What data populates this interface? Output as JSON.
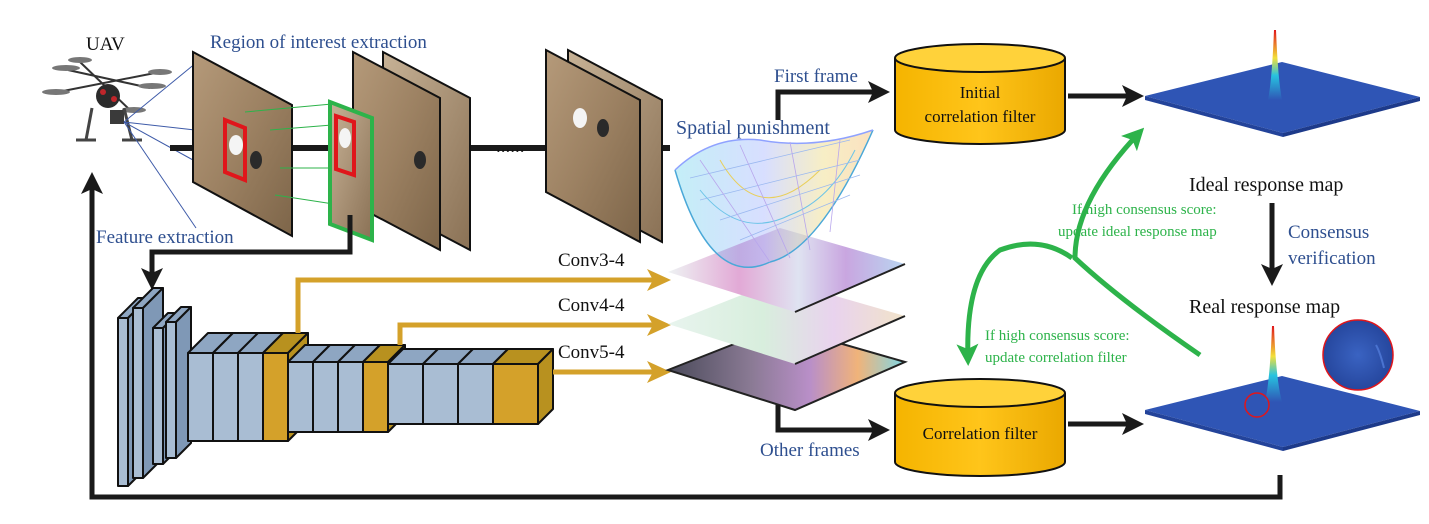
{
  "labels": {
    "uav": "UAV",
    "roi_extraction": "Region of interest extraction",
    "ellipsis": "......",
    "feature_extraction": "Feature extraction",
    "first_frame": "First frame",
    "other_frames": "Other frames",
    "spatial_punishment": "Spatial punishment",
    "initial_cf_line1": "Initial",
    "initial_cf_line2": "correlation filter",
    "cf": "Correlation filter",
    "ideal_map": "Ideal response map",
    "real_map": "Real response map",
    "consensus_line1": "Consensus",
    "consensus_line2": "verification",
    "update_ideal_line1": "If high consensus score:",
    "update_ideal_line2": "update ideal response map",
    "update_cf_line1": "If high consensus score:",
    "update_cf_line2": "update correlation filter"
  },
  "layers": [
    {
      "name": "Conv3-4"
    },
    {
      "name": "Conv4-4"
    },
    {
      "name": "Conv5-4"
    }
  ],
  "colors": {
    "blue_label": "#2e4f8f",
    "green_label": "#2db34a",
    "arrow_black": "#1a1a1a",
    "conv_gold": "#d4a12a",
    "conv_gray": "#a9bdd3",
    "cylinder_fill": "#ffc000",
    "response_blue": "#2f55b5",
    "target_red": "#e0161b"
  },
  "icons": [
    "uav-icon",
    "cylinder-icon",
    "surface-map-icon",
    "cnn-icon"
  ]
}
